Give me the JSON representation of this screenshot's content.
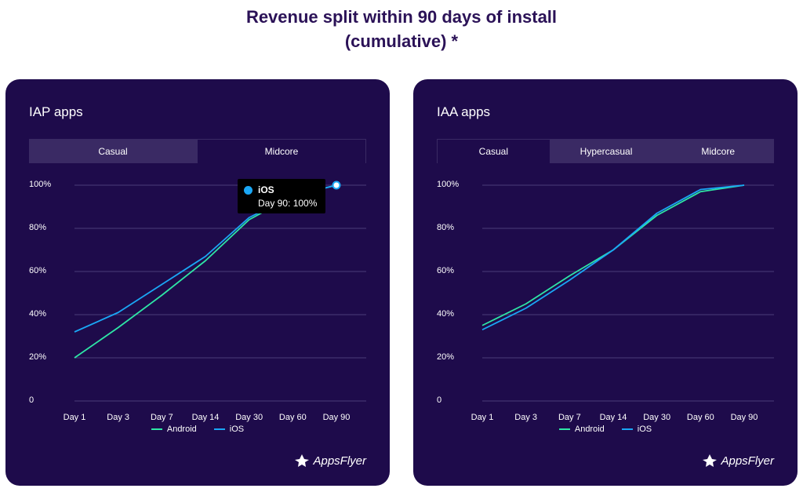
{
  "page": {
    "title_line1": "Revenue split within 90 days of install",
    "title_line2": "(cumulative) *"
  },
  "colors": {
    "android": "#2ee6a6",
    "ios": "#1aa7f5",
    "panel_bg": "#1e0b4b",
    "title": "#2b1257"
  },
  "panels": [
    {
      "title": "IAP apps",
      "tabs": [
        {
          "label": "Casual",
          "active": false
        },
        {
          "label": "Midcore",
          "active": true
        }
      ],
      "legend": {
        "android": "Android",
        "ios": "iOS"
      },
      "brand": "AppsFlyer",
      "tooltip": {
        "series": "iOS",
        "value": "Day 90: 100%"
      }
    },
    {
      "title": "IAA apps",
      "tabs": [
        {
          "label": "Casual",
          "active": true
        },
        {
          "label": "Hypercasual",
          "active": false
        },
        {
          "label": "Midcore",
          "active": false
        }
      ],
      "legend": {
        "android": "Android",
        "ios": "iOS"
      },
      "brand": "AppsFlyer"
    }
  ],
  "chart_data": [
    {
      "type": "line",
      "title": "",
      "categories": [
        "Day 1",
        "Day 3",
        "Day 7",
        "Day 14",
        "Day 30",
        "Day 60",
        "Day 90"
      ],
      "y_ticks": [
        "0",
        "20%",
        "40%",
        "60%",
        "80%",
        "100%"
      ],
      "ylim": [
        0,
        100
      ],
      "grid": true,
      "legend_position": "bottom",
      "series": [
        {
          "name": "Android",
          "values": [
            20,
            34,
            49,
            65,
            84,
            95,
            100
          ]
        },
        {
          "name": "iOS",
          "values": [
            32,
            41,
            54,
            67,
            85,
            95,
            100
          ]
        }
      ],
      "highlight": {
        "series": "iOS",
        "index": 6
      }
    },
    {
      "type": "line",
      "title": "",
      "categories": [
        "Day 1",
        "Day 3",
        "Day 7",
        "Day 14",
        "Day 30",
        "Day 60",
        "Day 90"
      ],
      "y_ticks": [
        "0",
        "20%",
        "40%",
        "60%",
        "80%",
        "100%"
      ],
      "ylim": [
        0,
        100
      ],
      "grid": true,
      "legend_position": "bottom",
      "series": [
        {
          "name": "Android",
          "values": [
            35,
            45,
            58,
            70,
            86,
            97,
            100
          ]
        },
        {
          "name": "iOS",
          "values": [
            33,
            43,
            56,
            70,
            87,
            98,
            100
          ]
        }
      ]
    }
  ]
}
